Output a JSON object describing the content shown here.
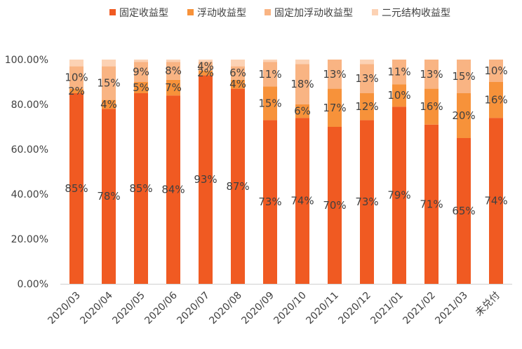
{
  "chart_data": {
    "type": "bar",
    "stacked": true,
    "normalized": true,
    "categories": [
      "2020/03",
      "2020/04",
      "2020/05",
      "2020/06",
      "2020/07",
      "2020/08",
      "2020/09",
      "2020/10",
      "2020/11",
      "2020/12",
      "2021/01",
      "2021/02",
      "2021/03",
      "未兑付"
    ],
    "series": [
      {
        "name": "固定收益型",
        "color": "#f05a22",
        "values": [
          85,
          78,
          85,
          84,
          93,
          87,
          73,
          74,
          70,
          73,
          79,
          71,
          65,
          74
        ]
      },
      {
        "name": "浮动收益型",
        "color": "#f7923a",
        "values": [
          2,
          4,
          5,
          7,
          2,
          4,
          15,
          6,
          17,
          12,
          10,
          16,
          20,
          16
        ]
      },
      {
        "name": "固定加浮动收益型",
        "color": "#f9b483",
        "values": [
          10,
          15,
          9,
          8,
          4,
          6,
          11,
          18,
          13,
          13,
          11,
          13,
          15,
          10
        ]
      },
      {
        "name": "二元结构收益型",
        "color": "#fcd2b4",
        "values": [
          3,
          3,
          1,
          1,
          1,
          3,
          1,
          2,
          0,
          2,
          0,
          0,
          0,
          0
        ]
      }
    ],
    "labeled_series": [
      0,
      1,
      2
    ],
    "yticks": [
      "0.00%",
      "20.00%",
      "40.00%",
      "60.00%",
      "80.00%",
      "100.00%"
    ],
    "ylim": [
      0,
      100
    ],
    "legend": "top"
  }
}
